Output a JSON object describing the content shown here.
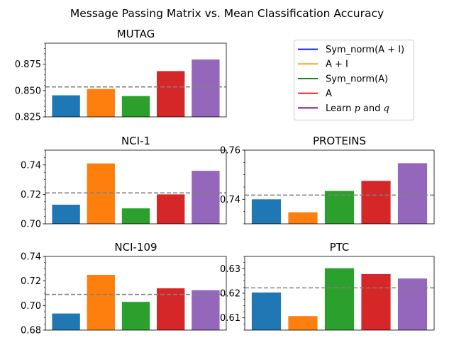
{
  "figure": {
    "title": "Message Passing Matrix vs. Mean Classification Accuracy"
  },
  "legend": {
    "entries": [
      {
        "label_parts": [
          {
            "text": "Sym_norm(A + I)",
            "italic": false
          }
        ],
        "color": "#0000ff"
      },
      {
        "label_parts": [
          {
            "text": "A + I",
            "italic": false
          }
        ],
        "color": "#ffa500"
      },
      {
        "label_parts": [
          {
            "text": "Sym_norm(A)",
            "italic": false
          }
        ],
        "color": "#008000"
      },
      {
        "label_parts": [
          {
            "text": "A",
            "italic": false
          }
        ],
        "color": "#ff0000"
      },
      {
        "label_parts": [
          {
            "text": "Learn ",
            "italic": false
          },
          {
            "text": "p",
            "italic": true
          },
          {
            "text": " and ",
            "italic": false
          },
          {
            "text": "q",
            "italic": true
          }
        ],
        "color": "#800080"
      }
    ]
  },
  "chart_data": [
    {
      "type": "bar",
      "title": "MUTAG",
      "categories": [
        "Sym_norm(A + I)",
        "A + I",
        "Sym_norm(A)",
        "A",
        "Learn p and q"
      ],
      "values": [
        0.8455,
        0.8515,
        0.8448,
        0.8685,
        0.8795
      ],
      "bar_colors": [
        "#1f77b4",
        "#ff7f0e",
        "#2ca02c",
        "#d62728",
        "#9467bd"
      ],
      "mean_line": 0.8535,
      "ylim": [
        0.825,
        0.895
      ],
      "yticks": [
        0.825,
        0.85,
        0.875
      ],
      "ytick_labels": [
        "0.825",
        "0.850",
        "0.875"
      ],
      "minor_step": 0.005
    },
    {
      "type": "bar",
      "title": "NCI-1",
      "categories": [
        "Sym_norm(A + I)",
        "A + I",
        "Sym_norm(A)",
        "A",
        "Learn p and q"
      ],
      "values": [
        0.713,
        0.741,
        0.7105,
        0.72,
        0.736
      ],
      "bar_colors": [
        "#1f77b4",
        "#ff7f0e",
        "#2ca02c",
        "#d62728",
        "#9467bd"
      ],
      "mean_line": 0.721,
      "ylim": [
        0.7,
        0.75
      ],
      "yticks": [
        0.7,
        0.72,
        0.74
      ],
      "ytick_labels": [
        "0.70",
        "0.72",
        "0.74"
      ],
      "minor_step": 0.005
    },
    {
      "type": "bar",
      "title": "PROTEINS",
      "categories": [
        "Sym_norm(A + I)",
        "A + I",
        "Sym_norm(A)",
        "A",
        "Learn p and q"
      ],
      "values": [
        0.74,
        0.7347,
        0.7434,
        0.7475,
        0.7547
      ],
      "bar_colors": [
        "#1f77b4",
        "#ff7f0e",
        "#2ca02c",
        "#d62728",
        "#9467bd"
      ],
      "mean_line": 0.7417,
      "ylim": [
        0.73,
        0.76
      ],
      "yticks": [
        0.74,
        0.76
      ],
      "ytick_labels": [
        "0.74",
        "0.76"
      ],
      "minor_step": 0.005
    },
    {
      "type": "bar",
      "title": "NCI-109",
      "categories": [
        "Sym_norm(A + I)",
        "A + I",
        "Sym_norm(A)",
        "A",
        "Learn p and q"
      ],
      "values": [
        0.6935,
        0.725,
        0.703,
        0.714,
        0.7125
      ],
      "bar_colors": [
        "#1f77b4",
        "#ff7f0e",
        "#2ca02c",
        "#d62728",
        "#9467bd"
      ],
      "mean_line": 0.709,
      "ylim": [
        0.68,
        0.74
      ],
      "yticks": [
        0.68,
        0.7,
        0.72,
        0.74
      ],
      "ytick_labels": [
        "0.68",
        "0.70",
        "0.72",
        "0.74"
      ],
      "minor_step": 0.005
    },
    {
      "type": "bar",
      "title": "PTC",
      "categories": [
        "Sym_norm(A + I)",
        "A + I",
        "Sym_norm(A)",
        "A",
        "Learn p and q"
      ],
      "values": [
        0.6203,
        0.6107,
        0.6302,
        0.6278,
        0.626
      ],
      "bar_colors": [
        "#1f77b4",
        "#ff7f0e",
        "#2ca02c",
        "#d62728",
        "#9467bd"
      ],
      "mean_line": 0.6222,
      "ylim": [
        0.605,
        0.635
      ],
      "yticks": [
        0.61,
        0.62,
        0.63
      ],
      "ytick_labels": [
        "0.61",
        "0.62",
        "0.63"
      ],
      "minor_step": 0.0025
    }
  ]
}
